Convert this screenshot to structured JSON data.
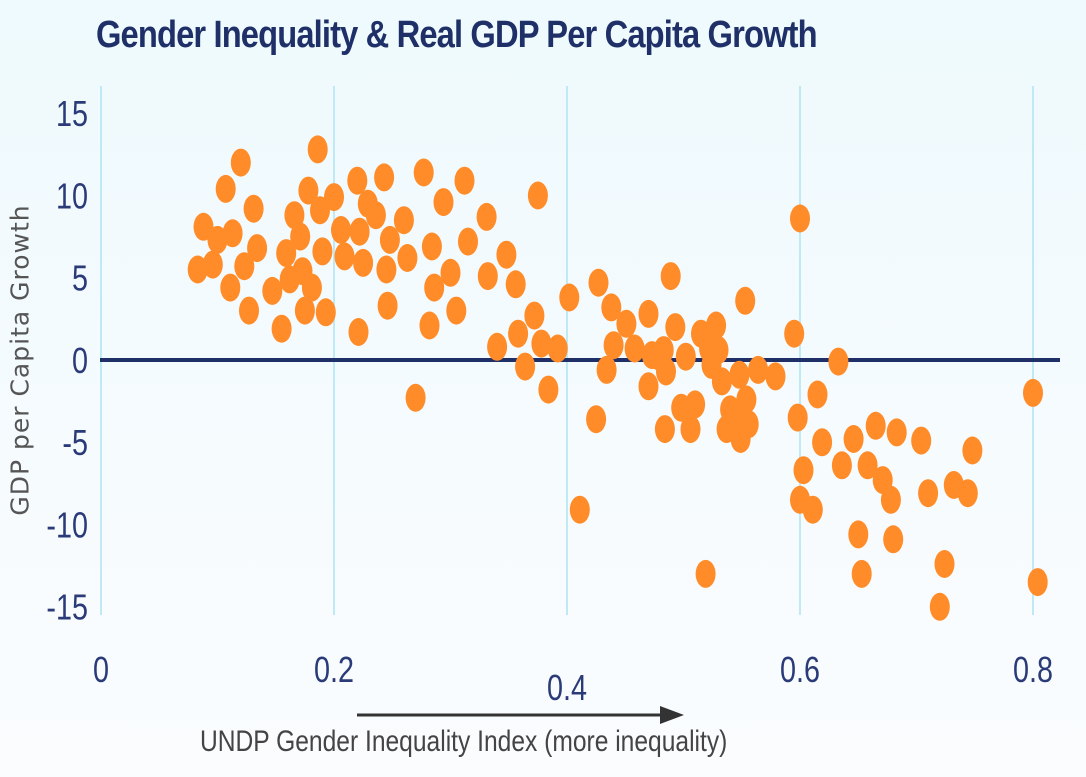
{
  "chart_data": {
    "type": "scatter",
    "title": "Gender Inequality & Real GDP Per Capita Growth",
    "xlabel": "UNDP Gender Inequality Index (more inequality)",
    "ylabel": "GDP per Capita Growth",
    "xlim": [
      0,
      0.82
    ],
    "ylim": [
      -15,
      15
    ],
    "xticks": [
      0,
      0.2,
      0.4,
      0.6,
      0.8
    ],
    "xtick_labels": [
      "0",
      "0.2",
      "0.4",
      "0.6",
      "0.8"
    ],
    "yticks": [
      15,
      10,
      5,
      0,
      -5,
      -10,
      -15
    ],
    "ytick_labels": [
      "15",
      "10",
      "5",
      "0",
      "-5",
      "-10",
      "-15"
    ],
    "grid": "vertical",
    "zero_line": true,
    "x_arrow": "more inequality",
    "colors": {
      "point": "#ff8c28",
      "axis": "#1f2f68",
      "grid": "#bfe9f4"
    },
    "points": [
      [
        0.083,
        5.5
      ],
      [
        0.088,
        8.1
      ],
      [
        0.096,
        5.8
      ],
      [
        0.1,
        7.3
      ],
      [
        0.107,
        10.4
      ],
      [
        0.111,
        4.4
      ],
      [
        0.113,
        7.7
      ],
      [
        0.12,
        12.0
      ],
      [
        0.123,
        5.7
      ],
      [
        0.127,
        3.0
      ],
      [
        0.131,
        9.2
      ],
      [
        0.134,
        6.8
      ],
      [
        0.147,
        4.2
      ],
      [
        0.155,
        1.9
      ],
      [
        0.159,
        6.5
      ],
      [
        0.162,
        4.9
      ],
      [
        0.166,
        8.8
      ],
      [
        0.171,
        7.5
      ],
      [
        0.173,
        5.4
      ],
      [
        0.175,
        3.0
      ],
      [
        0.178,
        10.3
      ],
      [
        0.181,
        4.4
      ],
      [
        0.186,
        12.8
      ],
      [
        0.188,
        9.1
      ],
      [
        0.19,
        6.6
      ],
      [
        0.193,
        2.9
      ],
      [
        0.2,
        9.9
      ],
      [
        0.206,
        7.9
      ],
      [
        0.209,
        6.3
      ],
      [
        0.22,
        10.9
      ],
      [
        0.221,
        1.7
      ],
      [
        0.222,
        7.8
      ],
      [
        0.225,
        5.9
      ],
      [
        0.229,
        9.5
      ],
      [
        0.236,
        8.8
      ],
      [
        0.243,
        11.1
      ],
      [
        0.245,
        5.5
      ],
      [
        0.246,
        3.3
      ],
      [
        0.248,
        7.3
      ],
      [
        0.26,
        8.5
      ],
      [
        0.263,
        6.2
      ],
      [
        0.27,
        -2.3
      ],
      [
        0.277,
        11.4
      ],
      [
        0.282,
        2.1
      ],
      [
        0.284,
        6.9
      ],
      [
        0.286,
        4.4
      ],
      [
        0.294,
        9.6
      ],
      [
        0.3,
        5.3
      ],
      [
        0.305,
        3.0
      ],
      [
        0.312,
        10.9
      ],
      [
        0.315,
        7.2
      ],
      [
        0.331,
        8.7
      ],
      [
        0.332,
        5.1
      ],
      [
        0.34,
        0.8
      ],
      [
        0.348,
        6.4
      ],
      [
        0.356,
        4.6
      ],
      [
        0.358,
        1.6
      ],
      [
        0.364,
        -0.4
      ],
      [
        0.372,
        2.7
      ],
      [
        0.375,
        10.0
      ],
      [
        0.378,
        1.0
      ],
      [
        0.384,
        -1.8
      ],
      [
        0.392,
        0.7
      ],
      [
        0.402,
        3.8
      ],
      [
        0.411,
        -9.1
      ],
      [
        0.425,
        -3.6
      ],
      [
        0.427,
        4.7
      ],
      [
        0.434,
        -0.6
      ],
      [
        0.438,
        3.2
      ],
      [
        0.44,
        0.9
      ],
      [
        0.451,
        2.2
      ],
      [
        0.458,
        0.7
      ],
      [
        0.47,
        -1.6
      ],
      [
        0.47,
        2.8
      ],
      [
        0.473,
        0.3
      ],
      [
        0.479,
        0.2
      ],
      [
        0.483,
        0.6
      ],
      [
        0.484,
        -4.2
      ],
      [
        0.485,
        -0.7
      ],
      [
        0.489,
        5.1
      ],
      [
        0.493,
        2.0
      ],
      [
        0.498,
        -2.9
      ],
      [
        0.502,
        0.2
      ],
      [
        0.506,
        -4.2
      ],
      [
        0.51,
        -2.7
      ],
      [
        0.515,
        1.6
      ],
      [
        0.519,
        -13.0
      ],
      [
        0.522,
        0.7
      ],
      [
        0.524,
        -0.3
      ],
      [
        0.528,
        2.1
      ],
      [
        0.53,
        0.6
      ],
      [
        0.533,
        -1.3
      ],
      [
        0.537,
        -4.2
      ],
      [
        0.54,
        -3.0
      ],
      [
        0.548,
        -3.3
      ],
      [
        0.548,
        -0.9
      ],
      [
        0.549,
        -4.8
      ],
      [
        0.554,
        -2.4
      ],
      [
        0.556,
        -3.9
      ],
      [
        0.553,
        3.6
      ],
      [
        0.564,
        -0.6
      ],
      [
        0.579,
        -1.0
      ],
      [
        0.595,
        1.6
      ],
      [
        0.598,
        -3.5
      ],
      [
        0.6,
        8.6
      ],
      [
        0.6,
        -8.5
      ],
      [
        0.603,
        -6.7
      ],
      [
        0.611,
        -9.1
      ],
      [
        0.615,
        -2.1
      ],
      [
        0.619,
        -5.0
      ],
      [
        0.633,
        -0.1
      ],
      [
        0.636,
        -6.4
      ],
      [
        0.646,
        -4.8
      ],
      [
        0.65,
        -10.6
      ],
      [
        0.653,
        -13.0
      ],
      [
        0.658,
        -6.4
      ],
      [
        0.665,
        -4.0
      ],
      [
        0.671,
        -7.3
      ],
      [
        0.678,
        -8.5
      ],
      [
        0.68,
        -10.9
      ],
      [
        0.683,
        -4.4
      ],
      [
        0.704,
        -4.9
      ],
      [
        0.71,
        -8.1
      ],
      [
        0.72,
        -15.0
      ],
      [
        0.724,
        -12.4
      ],
      [
        0.732,
        -7.6
      ],
      [
        0.744,
        -8.1
      ],
      [
        0.748,
        -5.5
      ],
      [
        0.8,
        -2.0
      ],
      [
        0.804,
        -13.5
      ]
    ]
  }
}
